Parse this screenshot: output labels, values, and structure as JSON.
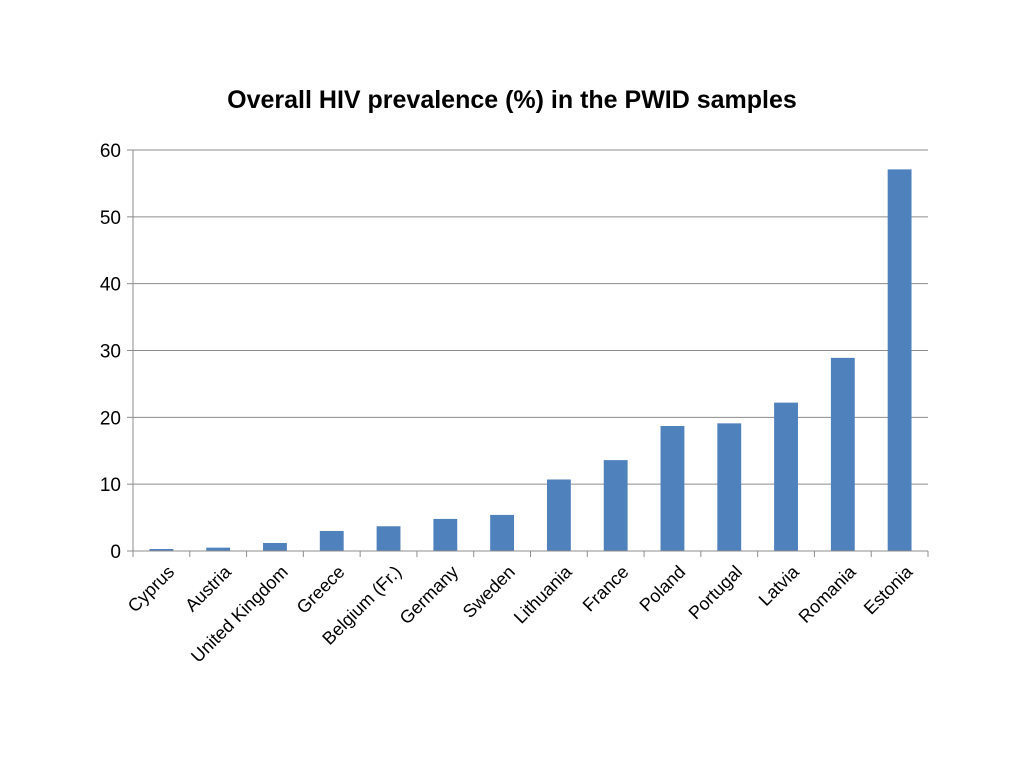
{
  "chart_data": {
    "type": "bar",
    "title": "Overall HIV prevalence (%) in the PWID samples",
    "xlabel": "",
    "ylabel": "",
    "ylim": [
      0,
      60
    ],
    "yticks": [
      0,
      10,
      20,
      30,
      40,
      50,
      60
    ],
    "grid": true,
    "legend": "none",
    "bar_color": "#4F81BD",
    "categories": [
      "Cyprus",
      "Austria",
      "United Kingdom",
      "Greece",
      "Belgium (Fr.)",
      "Germany",
      "Sweden",
      "Lithuania",
      "France",
      "Poland",
      "Portugal",
      "Latvia",
      "Romania",
      "Estonia"
    ],
    "values": [
      0.3,
      0.5,
      1.2,
      3.0,
      3.7,
      4.8,
      5.4,
      10.7,
      13.6,
      18.7,
      19.1,
      22.2,
      28.9,
      57.1
    ]
  }
}
